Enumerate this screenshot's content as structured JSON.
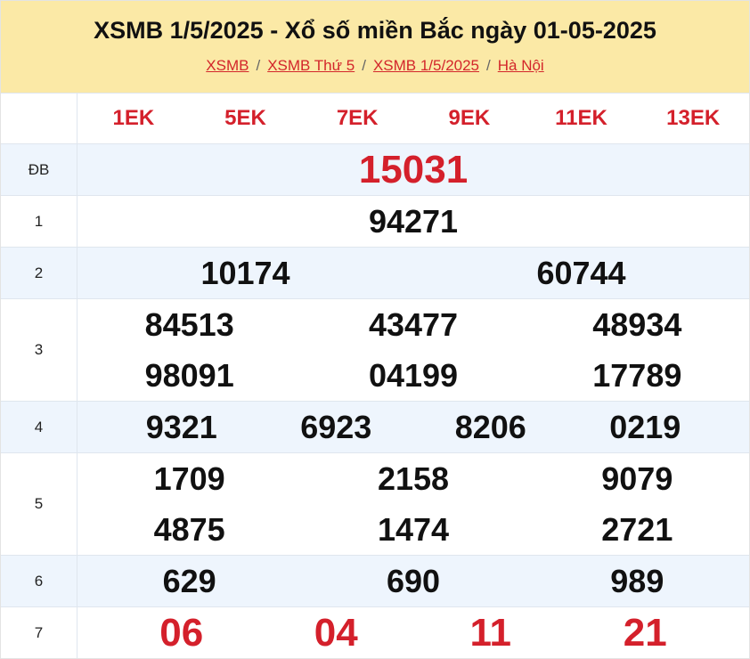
{
  "header": {
    "title": "XSMB 1/5/2025 - Xổ số miền Bắc ngày 01-05-2025",
    "breadcrumbs": [
      "XSMB",
      "XSMB Thứ 5",
      "XSMB 1/5/2025",
      "Hà Nội"
    ],
    "separator": "/"
  },
  "codes": [
    "1EK",
    "5EK",
    "7EK",
    "9EK",
    "11EK",
    "13EK"
  ],
  "prizes": [
    {
      "label": "ĐB",
      "cols": 1,
      "numbers": [
        "15031"
      ]
    },
    {
      "label": "1",
      "cols": 1,
      "numbers": [
        "94271"
      ]
    },
    {
      "label": "2",
      "cols": 2,
      "numbers": [
        "10174",
        "60744"
      ]
    },
    {
      "label": "3",
      "cols": 3,
      "numbers": [
        "84513",
        "43477",
        "48934",
        "98091",
        "04199",
        "17789"
      ]
    },
    {
      "label": "4",
      "cols": 4,
      "numbers": [
        "9321",
        "6923",
        "8206",
        "0219"
      ]
    },
    {
      "label": "5",
      "cols": 3,
      "numbers": [
        "1709",
        "2158",
        "9079",
        "4875",
        "1474",
        "2721"
      ]
    },
    {
      "label": "6",
      "cols": 3,
      "numbers": [
        "629",
        "690",
        "989"
      ]
    },
    {
      "label": "7",
      "cols": 4,
      "numbers": [
        "06",
        "04",
        "11",
        "21"
      ]
    }
  ],
  "colors": {
    "header_bg": "#fbe9a6",
    "accent_red": "#d4202b",
    "alt_row": "#eef5fd"
  }
}
